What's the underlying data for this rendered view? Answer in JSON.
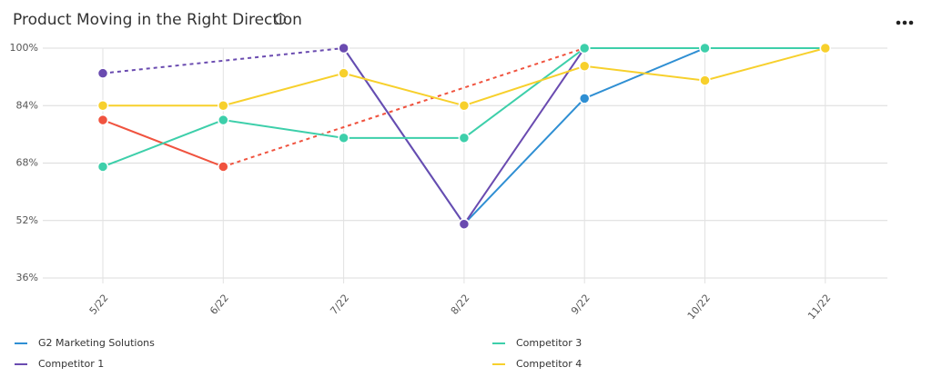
{
  "chart_data": {
    "type": "line",
    "title": "Product Moving in the Right Direction",
    "categories": [
      "5/22",
      "6/22",
      "7/22",
      "8/22",
      "9/22",
      "10/22",
      "11/22"
    ],
    "series": [
      {
        "name": "G2 Marketing Solutions",
        "color": "#2f8fd3",
        "values": [
          null,
          null,
          100,
          51,
          86,
          100,
          100
        ]
      },
      {
        "name": "Competitor 1",
        "color": "#6a4bb0",
        "values": [
          93,
          null,
          100,
          51,
          100,
          null,
          null
        ]
      },
      {
        "color": "#f0533f",
        "values": [
          80,
          67,
          null,
          null,
          100,
          null,
          null
        ]
      },
      {
        "name": "Competitor 3",
        "color": "#3dcfaa",
        "values": [
          67,
          80,
          75,
          75,
          100,
          100,
          100
        ]
      },
      {
        "name": "Competitor 4",
        "color": "#f7d02c",
        "values": [
          84,
          84,
          93,
          84,
          95,
          91,
          100
        ]
      }
    ],
    "ylim": [
      36,
      100
    ],
    "yticks": [
      {
        "value": 36,
        "label": "36%"
      },
      {
        "value": 52,
        "label": "52%"
      },
      {
        "value": 68,
        "label": "68%"
      },
      {
        "value": 84,
        "label": "84%"
      },
      {
        "value": 100,
        "label": "100%"
      }
    ],
    "grid": true
  }
}
